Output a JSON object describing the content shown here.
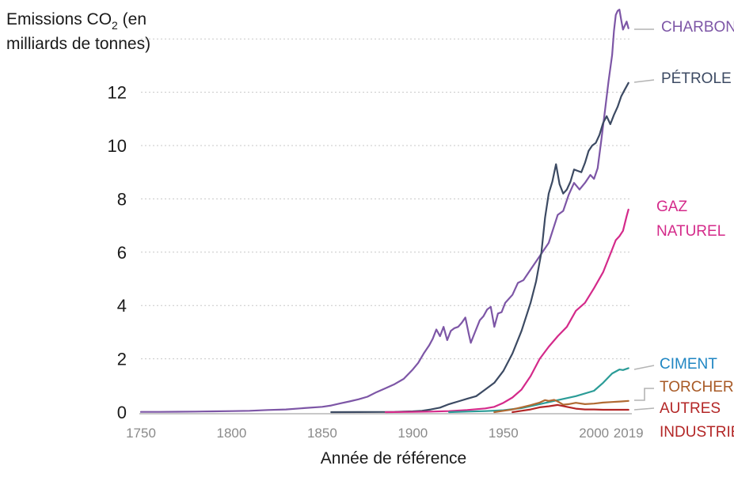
{
  "chart_data": {
    "type": "line",
    "title": "",
    "ylabel_line1": "Emissions CO",
    "ylabel_sub": "2",
    "ylabel_rest": " (en",
    "ylabel_line2": "milliards de tonnes)",
    "xlabel": "Année de référence",
    "xlim": [
      1750,
      2020
    ],
    "ylim": [
      0,
      15
    ],
    "yticks": [
      0,
      2,
      4,
      6,
      8,
      10,
      12
    ],
    "xticks": [
      {
        "value": 1750,
        "label": "1750"
      },
      {
        "value": 1800,
        "label": "1800"
      },
      {
        "value": 1850,
        "label": "1850"
      },
      {
        "value": 1900,
        "label": "1900"
      },
      {
        "value": 1950,
        "label": "1950"
      },
      {
        "value": 2000,
        "label": "2000"
      },
      {
        "value": 2019,
        "label": "2019"
      }
    ],
    "grid": true,
    "series": [
      {
        "name": "CHARBON",
        "color": "#7d56a6",
        "points": [
          [
            1750,
            0.01
          ],
          [
            1760,
            0.01
          ],
          [
            1770,
            0.015
          ],
          [
            1780,
            0.02
          ],
          [
            1790,
            0.03
          ],
          [
            1800,
            0.04
          ],
          [
            1810,
            0.05
          ],
          [
            1820,
            0.08
          ],
          [
            1830,
            0.1
          ],
          [
            1840,
            0.15
          ],
          [
            1850,
            0.2
          ],
          [
            1855,
            0.25
          ],
          [
            1860,
            0.33
          ],
          [
            1865,
            0.4
          ],
          [
            1870,
            0.48
          ],
          [
            1875,
            0.58
          ],
          [
            1880,
            0.75
          ],
          [
            1885,
            0.9
          ],
          [
            1890,
            1.05
          ],
          [
            1895,
            1.25
          ],
          [
            1900,
            1.6
          ],
          [
            1903,
            1.85
          ],
          [
            1906,
            2.2
          ],
          [
            1909,
            2.5
          ],
          [
            1911,
            2.75
          ],
          [
            1913,
            3.1
          ],
          [
            1915,
            2.85
          ],
          [
            1917,
            3.2
          ],
          [
            1919,
            2.7
          ],
          [
            1921,
            3.05
          ],
          [
            1923,
            3.15
          ],
          [
            1925,
            3.2
          ],
          [
            1927,
            3.35
          ],
          [
            1929,
            3.55
          ],
          [
            1931,
            2.9
          ],
          [
            1932,
            2.6
          ],
          [
            1934,
            2.95
          ],
          [
            1937,
            3.45
          ],
          [
            1939,
            3.6
          ],
          [
            1941,
            3.85
          ],
          [
            1943,
            3.95
          ],
          [
            1945,
            3.2
          ],
          [
            1947,
            3.7
          ],
          [
            1949,
            3.75
          ],
          [
            1951,
            4.1
          ],
          [
            1955,
            4.4
          ],
          [
            1958,
            4.85
          ],
          [
            1961,
            4.95
          ],
          [
            1965,
            5.35
          ],
          [
            1970,
            5.85
          ],
          [
            1975,
            6.35
          ],
          [
            1980,
            7.4
          ],
          [
            1983,
            7.55
          ],
          [
            1986,
            8.15
          ],
          [
            1989,
            8.6
          ],
          [
            1992,
            8.35
          ],
          [
            1995,
            8.6
          ],
          [
            1998,
            8.9
          ],
          [
            2000,
            8.75
          ],
          [
            2002,
            9.15
          ],
          [
            2004,
            10.2
          ],
          [
            2006,
            11.3
          ],
          [
            2008,
            12.4
          ],
          [
            2010,
            13.4
          ],
          [
            2011,
            14.3
          ],
          [
            2012,
            14.9
          ],
          [
            2013,
            15.05
          ],
          [
            2014,
            15.1
          ],
          [
            2015,
            14.7
          ],
          [
            2016,
            14.35
          ],
          [
            2017,
            14.5
          ],
          [
            2018,
            14.65
          ],
          [
            2019,
            14.4
          ]
        ]
      },
      {
        "name": "PÉTROLE",
        "color": "#3c4a63",
        "points": [
          [
            1855,
            0.0
          ],
          [
            1870,
            0.002
          ],
          [
            1880,
            0.005
          ],
          [
            1890,
            0.01
          ],
          [
            1900,
            0.03
          ],
          [
            1905,
            0.05
          ],
          [
            1910,
            0.1
          ],
          [
            1915,
            0.17
          ],
          [
            1920,
            0.3
          ],
          [
            1925,
            0.4
          ],
          [
            1930,
            0.5
          ],
          [
            1935,
            0.6
          ],
          [
            1940,
            0.85
          ],
          [
            1945,
            1.1
          ],
          [
            1950,
            1.55
          ],
          [
            1955,
            2.2
          ],
          [
            1960,
            3.05
          ],
          [
            1965,
            4.1
          ],
          [
            1968,
            4.9
          ],
          [
            1971,
            6.0
          ],
          [
            1973,
            7.3
          ],
          [
            1975,
            8.2
          ],
          [
            1977,
            8.65
          ],
          [
            1979,
            9.3
          ],
          [
            1981,
            8.55
          ],
          [
            1983,
            8.2
          ],
          [
            1985,
            8.35
          ],
          [
            1987,
            8.65
          ],
          [
            1989,
            9.1
          ],
          [
            1991,
            9.05
          ],
          [
            1993,
            9.0
          ],
          [
            1995,
            9.35
          ],
          [
            1997,
            9.8
          ],
          [
            1999,
            10.0
          ],
          [
            2001,
            10.1
          ],
          [
            2003,
            10.4
          ],
          [
            2005,
            10.85
          ],
          [
            2007,
            11.1
          ],
          [
            2009,
            10.8
          ],
          [
            2011,
            11.15
          ],
          [
            2013,
            11.45
          ],
          [
            2015,
            11.85
          ],
          [
            2017,
            12.1
          ],
          [
            2019,
            12.35
          ]
        ]
      },
      {
        "name": "GAZ NATUREL",
        "color": "#d42a8a",
        "points": [
          [
            1885,
            0.0
          ],
          [
            1900,
            0.01
          ],
          [
            1910,
            0.02
          ],
          [
            1920,
            0.04
          ],
          [
            1930,
            0.08
          ],
          [
            1940,
            0.14
          ],
          [
            1945,
            0.2
          ],
          [
            1950,
            0.35
          ],
          [
            1955,
            0.55
          ],
          [
            1960,
            0.85
          ],
          [
            1965,
            1.35
          ],
          [
            1970,
            2.0
          ],
          [
            1975,
            2.45
          ],
          [
            1980,
            2.85
          ],
          [
            1985,
            3.2
          ],
          [
            1990,
            3.8
          ],
          [
            1995,
            4.1
          ],
          [
            2000,
            4.65
          ],
          [
            2005,
            5.25
          ],
          [
            2010,
            6.1
          ],
          [
            2012,
            6.45
          ],
          [
            2014,
            6.6
          ],
          [
            2016,
            6.8
          ],
          [
            2018,
            7.35
          ],
          [
            2019,
            7.6
          ]
        ]
      },
      {
        "name": "CIMENT",
        "color": "#2b9c97",
        "points": [
          [
            1920,
            0.0
          ],
          [
            1930,
            0.02
          ],
          [
            1940,
            0.04
          ],
          [
            1950,
            0.07
          ],
          [
            1960,
            0.15
          ],
          [
            1970,
            0.3
          ],
          [
            1980,
            0.45
          ],
          [
            1990,
            0.6
          ],
          [
            2000,
            0.8
          ],
          [
            2005,
            1.1
          ],
          [
            2010,
            1.45
          ],
          [
            2014,
            1.6
          ],
          [
            2016,
            1.58
          ],
          [
            2019,
            1.65
          ]
        ]
      },
      {
        "name": "TORCHERE",
        "color": "#b06a32",
        "points": [
          [
            1945,
            0.0
          ],
          [
            1950,
            0.05
          ],
          [
            1955,
            0.1
          ],
          [
            1960,
            0.18
          ],
          [
            1965,
            0.26
          ],
          [
            1970,
            0.36
          ],
          [
            1973,
            0.45
          ],
          [
            1975,
            0.42
          ],
          [
            1978,
            0.46
          ],
          [
            1980,
            0.4
          ],
          [
            1983,
            0.28
          ],
          [
            1986,
            0.3
          ],
          [
            1990,
            0.35
          ],
          [
            1995,
            0.3
          ],
          [
            2000,
            0.32
          ],
          [
            2005,
            0.36
          ],
          [
            2010,
            0.38
          ],
          [
            2015,
            0.4
          ],
          [
            2019,
            0.42
          ]
        ]
      },
      {
        "name": "AUTRES INDUSTRIES",
        "color": "#b32626",
        "points": [
          [
            1955,
            0.0
          ],
          [
            1960,
            0.05
          ],
          [
            1965,
            0.1
          ],
          [
            1970,
            0.18
          ],
          [
            1975,
            0.22
          ],
          [
            1980,
            0.27
          ],
          [
            1985,
            0.2
          ],
          [
            1990,
            0.13
          ],
          [
            1995,
            0.1
          ],
          [
            2000,
            0.1
          ],
          [
            2005,
            0.09
          ],
          [
            2010,
            0.09
          ],
          [
            2015,
            0.09
          ],
          [
            2019,
            0.09
          ]
        ]
      }
    ]
  },
  "labels": [
    {
      "series": "CHARBON",
      "lines": [
        "CHARBON"
      ],
      "color": "#7d56a6"
    },
    {
      "series": "PÉTROLE",
      "lines": [
        "PÉTROLE"
      ],
      "color": "#3c4a63"
    },
    {
      "series": "GAZ NATUREL",
      "lines": [
        "GAZ",
        "NATUREL"
      ],
      "color": "#d42a8a"
    },
    {
      "series": "CIMENT",
      "lines": [
        "CIMENT"
      ],
      "color": "#1f86c3"
    },
    {
      "series": "TORCHERE",
      "lines": [
        "TORCHERE"
      ],
      "color": "#a85a26"
    },
    {
      "series": "AUTRES INDUSTRIES",
      "lines": [
        "AUTRES",
        "INDUSTRIES"
      ],
      "color": "#b32626"
    }
  ]
}
